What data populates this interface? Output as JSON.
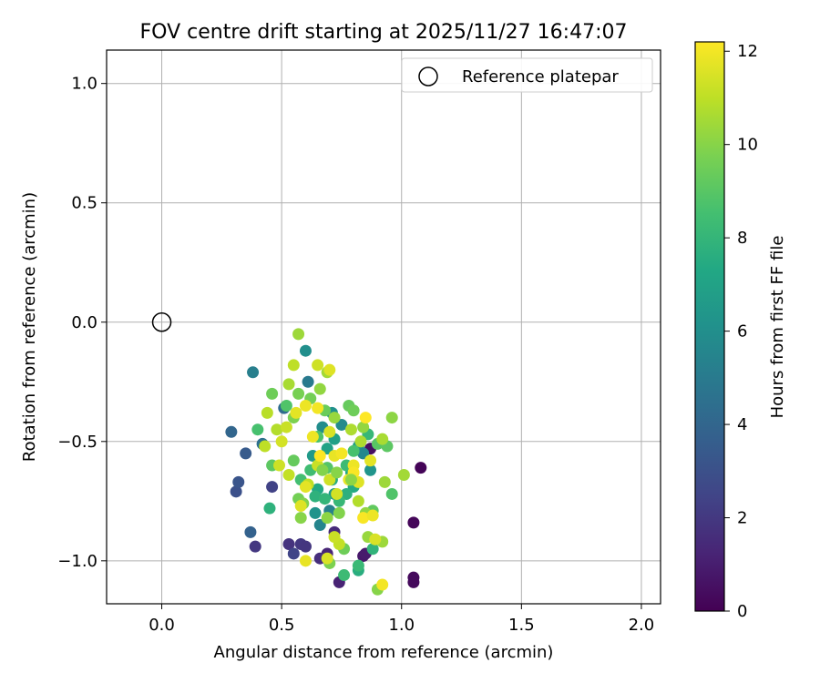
{
  "chart_data": {
    "type": "scatter",
    "title": "FOV centre drift starting at 2025/11/27 16:47:07",
    "xlabel": "Angular distance from reference (arcmin)",
    "ylabel": "Rotation from reference (arcmin)",
    "xlim": [
      -0.23,
      2.08
    ],
    "ylim": [
      -1.18,
      1.14
    ],
    "xticks": [
      0.0,
      0.5,
      1.0,
      1.5,
      2.0
    ],
    "xtick_labels": [
      "0.0",
      "0.5",
      "1.0",
      "1.5",
      "2.0"
    ],
    "yticks": [
      1.0,
      0.5,
      0.0,
      -0.5,
      -1.0
    ],
    "ytick_labels": [
      "1.0",
      "0.5",
      "0.0",
      "−0.5",
      "−1.0"
    ],
    "grid": true,
    "legend": {
      "position": "top-right",
      "entries": [
        "Reference platepar"
      ]
    },
    "reference_point": {
      "x": 0.0,
      "y": 0.0,
      "label": "Reference platepar"
    },
    "colorbar": {
      "label": "Hours from first FF file",
      "colormap": "viridis",
      "range": [
        0,
        12.2
      ],
      "ticks": [
        0,
        2,
        4,
        6,
        8,
        10,
        12
      ],
      "tick_labels": [
        "0",
        "2",
        "4",
        "6",
        "8",
        "10",
        "12"
      ]
    },
    "series": [
      {
        "name": "FOV centre drift",
        "points": [
          [
            1.08,
            -0.61,
            0.1
          ],
          [
            1.05,
            -0.84,
            0.2
          ],
          [
            1.05,
            -1.07,
            0.3
          ],
          [
            1.05,
            -1.09,
            0.3
          ],
          [
            0.87,
            -0.53,
            0.5
          ],
          [
            0.84,
            -0.98,
            0.8
          ],
          [
            0.85,
            -0.97,
            0.9
          ],
          [
            0.74,
            -1.09,
            1.2
          ],
          [
            0.69,
            -0.97,
            1.3
          ],
          [
            0.72,
            -0.88,
            1.5
          ],
          [
            0.66,
            -0.99,
            1.6
          ],
          [
            0.53,
            -0.93,
            1.8
          ],
          [
            0.58,
            -0.93,
            2.0
          ],
          [
            0.6,
            -0.94,
            1.9
          ],
          [
            0.39,
            -0.94,
            2.0
          ],
          [
            0.55,
            -0.97,
            2.5
          ],
          [
            0.46,
            -0.69,
            2.4
          ],
          [
            0.31,
            -0.71,
            3.0
          ],
          [
            0.32,
            -0.67,
            3.2
          ],
          [
            0.35,
            -0.55,
            3.5
          ],
          [
            0.37,
            -0.88,
            3.8
          ],
          [
            0.29,
            -0.46,
            4.0
          ],
          [
            0.42,
            -0.51,
            4.5
          ],
          [
            0.51,
            -0.36,
            4.3
          ],
          [
            0.61,
            -0.25,
            5.0
          ],
          [
            0.38,
            -0.21,
            5.2
          ],
          [
            0.6,
            -0.12,
            6.0
          ],
          [
            0.66,
            -0.85,
            5.5
          ],
          [
            0.7,
            -0.79,
            5.3
          ],
          [
            0.64,
            -0.8,
            6.2
          ],
          [
            0.72,
            -0.72,
            6.5
          ],
          [
            0.75,
            -0.43,
            5.8
          ],
          [
            0.82,
            -0.52,
            6.8
          ],
          [
            0.84,
            -0.55,
            5.6
          ],
          [
            0.87,
            -0.62,
            6.3
          ],
          [
            0.72,
            -0.49,
            6.9
          ],
          [
            0.67,
            -0.44,
            5.9
          ],
          [
            0.71,
            -0.38,
            6.1
          ],
          [
            0.63,
            -0.56,
            6.6
          ],
          [
            0.69,
            -0.53,
            7.0
          ],
          [
            0.79,
            -0.63,
            7.2
          ],
          [
            0.8,
            -0.69,
            7.4
          ],
          [
            0.77,
            -0.72,
            7.7
          ],
          [
            0.71,
            -0.66,
            7.5
          ],
          [
            0.65,
            -0.7,
            7.3
          ],
          [
            0.64,
            -0.73,
            7.8
          ],
          [
            0.68,
            -0.74,
            8.0
          ],
          [
            0.74,
            -0.75,
            8.1
          ],
          [
            0.82,
            -1.04,
            7.6
          ],
          [
            0.76,
            -1.06,
            8.3
          ],
          [
            0.82,
            -1.02,
            8.2
          ],
          [
            0.88,
            -0.95,
            7.9
          ],
          [
            0.45,
            -0.78,
            7.8
          ],
          [
            0.4,
            -0.45,
            8.6
          ],
          [
            0.52,
            -0.35,
            8.8
          ],
          [
            0.58,
            -0.66,
            8.5
          ],
          [
            0.62,
            -0.62,
            8.4
          ],
          [
            0.65,
            -0.48,
            8.7
          ],
          [
            0.69,
            -0.61,
            8.9
          ],
          [
            0.77,
            -0.6,
            8.3
          ],
          [
            0.8,
            -0.54,
            8.6
          ],
          [
            0.86,
            -0.47,
            8.1
          ],
          [
            0.9,
            -0.51,
            9.0
          ],
          [
            0.94,
            -0.52,
            9.1
          ],
          [
            0.96,
            -0.72,
            8.8
          ],
          [
            0.88,
            -0.79,
            9.2
          ],
          [
            0.78,
            -0.35,
            9.3
          ],
          [
            0.8,
            -0.37,
            9.5
          ],
          [
            0.68,
            -0.37,
            9.4
          ],
          [
            0.62,
            -0.32,
            9.6
          ],
          [
            0.57,
            -0.3,
            9.7
          ],
          [
            0.55,
            -0.4,
            9.8
          ],
          [
            0.46,
            -0.3,
            9.5
          ],
          [
            0.46,
            -0.6,
            9.1
          ],
          [
            0.55,
            -0.58,
            9.3
          ],
          [
            0.57,
            -0.74,
            9.6
          ],
          [
            0.59,
            -0.76,
            9.9
          ],
          [
            0.58,
            -0.82,
            10.0
          ],
          [
            0.7,
            -1.01,
            9.8
          ],
          [
            0.76,
            -0.95,
            9.5
          ],
          [
            0.69,
            -0.82,
            10.1
          ],
          [
            0.74,
            -0.8,
            9.9
          ],
          [
            0.85,
            -0.8,
            10.2
          ],
          [
            0.86,
            -0.9,
            10.3
          ],
          [
            0.9,
            -1.12,
            10.0
          ],
          [
            0.92,
            -0.92,
            10.4
          ],
          [
            0.96,
            -0.4,
            10.1
          ],
          [
            1.01,
            -0.64,
            10.5
          ],
          [
            0.92,
            -0.49,
            10.6
          ],
          [
            0.84,
            -0.44,
            10.2
          ],
          [
            0.79,
            -0.45,
            10.7
          ],
          [
            0.72,
            -0.4,
            10.3
          ],
          [
            0.69,
            -0.21,
            10.5
          ],
          [
            0.66,
            -0.28,
            10.2
          ],
          [
            0.57,
            -0.05,
            10.4
          ],
          [
            0.53,
            -0.26,
            10.6
          ],
          [
            0.48,
            -0.45,
            10.8
          ],
          [
            0.44,
            -0.38,
            10.9
          ],
          [
            0.43,
            -0.52,
            11.0
          ],
          [
            0.53,
            -0.64,
            11.1
          ],
          [
            0.61,
            -0.68,
            11.0
          ],
          [
            0.65,
            -0.6,
            11.2
          ],
          [
            0.7,
            -0.66,
            11.3
          ],
          [
            0.73,
            -0.72,
            11.4
          ],
          [
            0.74,
            -0.93,
            11.1
          ],
          [
            0.72,
            -0.9,
            11.2
          ],
          [
            0.69,
            -0.99,
            11.5
          ],
          [
            0.6,
            -1.0,
            11.8
          ],
          [
            0.58,
            -0.77,
            11.6
          ],
          [
            0.6,
            -0.69,
            11.7
          ],
          [
            0.63,
            -0.48,
            11.9
          ],
          [
            0.7,
            -0.46,
            11.5
          ],
          [
            0.72,
            -0.56,
            11.8
          ],
          [
            0.75,
            -0.55,
            12.0
          ],
          [
            0.8,
            -0.6,
            11.9
          ],
          [
            0.82,
            -0.67,
            11.6
          ],
          [
            0.84,
            -0.82,
            12.1
          ],
          [
            0.88,
            -0.81,
            11.9
          ],
          [
            0.89,
            -0.91,
            11.5
          ],
          [
            0.92,
            -1.1,
            12.0
          ],
          [
            0.85,
            -0.4,
            12.2
          ],
          [
            0.87,
            -0.58,
            11.7
          ],
          [
            0.8,
            -0.63,
            12.1
          ],
          [
            0.78,
            -0.66,
            11.8
          ],
          [
            0.66,
            -0.56,
            12.2
          ],
          [
            0.65,
            -0.36,
            12.0
          ],
          [
            0.6,
            -0.35,
            11.9
          ],
          [
            0.56,
            -0.38,
            11.7
          ],
          [
            0.5,
            -0.5,
            11.4
          ],
          [
            0.49,
            -0.6,
            11.3
          ],
          [
            0.52,
            -0.44,
            11.2
          ],
          [
            0.55,
            -0.18,
            11.0
          ],
          [
            0.65,
            -0.18,
            11.3
          ],
          [
            0.7,
            -0.2,
            11.6
          ],
          [
            0.82,
            -0.75,
            10.8
          ],
          [
            0.83,
            -0.5,
            10.7
          ],
          [
            0.93,
            -0.67,
            10.4
          ],
          [
            0.79,
            -0.66,
            10.1
          ],
          [
            0.73,
            -0.63,
            10.0
          ],
          [
            0.67,
            -0.62,
            9.9
          ]
        ]
      }
    ]
  }
}
